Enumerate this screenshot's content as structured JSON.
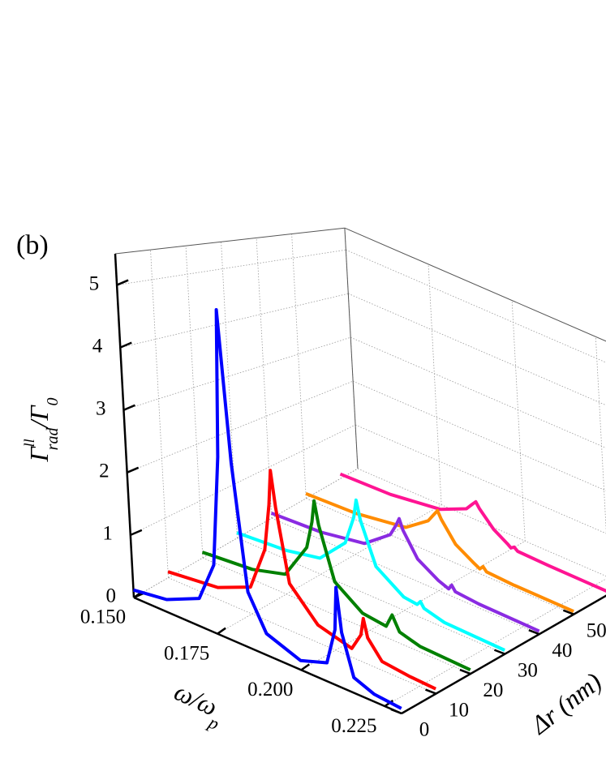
{
  "chart_data": {
    "type": "waterfall3d",
    "panel_label": "(b)",
    "x_label": {
      "main": "ω/ω",
      "sub": "p"
    },
    "y_label": "Δr (nm)",
    "z_label": {
      "main": "Γ",
      "sup": "ll",
      "sub": "rad",
      "main2": "/Γ",
      "sub2": "0"
    },
    "xlim": [
      0.15,
      0.23
    ],
    "xticks": [
      {
        "value": 0.15,
        "label": "0.150"
      },
      {
        "value": 0.175,
        "label": "0.175"
      },
      {
        "value": 0.2,
        "label": "0.200"
      },
      {
        "value": 0.225,
        "label": "0.225"
      }
    ],
    "ylim": [
      0,
      65
    ],
    "yticks": [
      0,
      10,
      20,
      30,
      40,
      50
    ],
    "zlim": [
      0,
      5.5
    ],
    "zticks": [
      0,
      1,
      2,
      3,
      4,
      5
    ],
    "grid": true,
    "series": [
      {
        "color": "#0000ff",
        "y": 0,
        "x": [
          0.15,
          0.16,
          0.17,
          0.175,
          0.178,
          0.18,
          0.182,
          0.185,
          0.19,
          0.2,
          0.208,
          0.211,
          0.212,
          0.213,
          0.216,
          0.222,
          0.23
        ],
        "values": [
          0.12,
          0.2,
          0.45,
          1.1,
          2.9,
          5.3,
          2.9,
          0.9,
          0.35,
          0.15,
          0.3,
          0.9,
          1.6,
          0.9,
          0.25,
          0.12,
          0.08
        ]
      },
      {
        "color": "#ff0000",
        "y": 10,
        "x": [
          0.15,
          0.165,
          0.175,
          0.18,
          0.182,
          0.183,
          0.184,
          0.187,
          0.195,
          0.205,
          0.208,
          0.209,
          0.21,
          0.214,
          0.222,
          0.23
        ],
        "values": [
          0.1,
          0.2,
          0.45,
          1.2,
          2.0,
          2.6,
          2.0,
          0.8,
          0.3,
          0.15,
          0.45,
          0.75,
          0.45,
          0.15,
          0.1,
          0.08
        ]
      },
      {
        "color": "#008000",
        "y": 20,
        "x": [
          0.15,
          0.165,
          0.175,
          0.182,
          0.184,
          0.185,
          0.186,
          0.19,
          0.198,
          0.205,
          0.207,
          0.209,
          0.215,
          0.23
        ],
        "values": [
          0.1,
          0.18,
          0.35,
          1.0,
          1.5,
          1.9,
          1.5,
          0.6,
          0.25,
          0.2,
          0.45,
          0.2,
          0.1,
          0.07
        ]
      },
      {
        "color": "#00ffff",
        "y": 30,
        "x": [
          0.15,
          0.165,
          0.175,
          0.183,
          0.186,
          0.187,
          0.188,
          0.192,
          0.2,
          0.204,
          0.205,
          0.206,
          0.212,
          0.23
        ],
        "values": [
          0.1,
          0.17,
          0.3,
          0.8,
          1.35,
          1.7,
          1.35,
          0.6,
          0.25,
          0.22,
          0.3,
          0.2,
          0.1,
          0.07
        ]
      },
      {
        "color": "#8a2be2",
        "y": 40,
        "x": [
          0.15,
          0.165,
          0.178,
          0.186,
          0.188,
          0.189,
          0.19,
          0.194,
          0.2,
          0.203,
          0.204,
          0.205,
          0.212,
          0.23
        ],
        "values": [
          0.1,
          0.15,
          0.3,
          0.7,
          0.95,
          1.1,
          0.9,
          0.45,
          0.2,
          0.12,
          0.22,
          0.12,
          0.08,
          0.06
        ]
      },
      {
        "color": "#ff8c00",
        "y": 50,
        "x": [
          0.15,
          0.165,
          0.18,
          0.187,
          0.189,
          0.19,
          0.191,
          0.195,
          0.2,
          0.202,
          0.203,
          0.204,
          0.212,
          0.23
        ],
        "values": [
          0.1,
          0.14,
          0.3,
          0.65,
          0.85,
          0.95,
          0.8,
          0.4,
          0.18,
          0.1,
          0.18,
          0.1,
          0.07,
          0.06
        ]
      },
      {
        "color": "#ff1493",
        "y": 60,
        "x": [
          0.15,
          0.165,
          0.18,
          0.188,
          0.19,
          0.191,
          0.192,
          0.196,
          0.2,
          0.201,
          0.202,
          0.203,
          0.212,
          0.23
        ],
        "values": [
          0.1,
          0.13,
          0.28,
          0.55,
          0.72,
          0.8,
          0.68,
          0.35,
          0.16,
          0.1,
          0.15,
          0.09,
          0.07,
          0.06
        ]
      }
    ]
  }
}
